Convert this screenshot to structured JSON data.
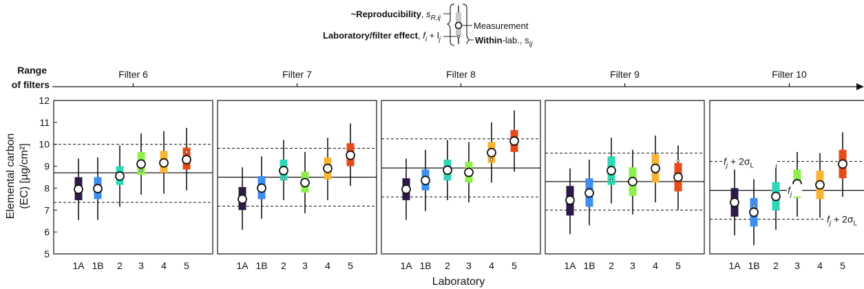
{
  "legend": {
    "reproducibility_label": "~Reproducibility",
    "reproducibility_symbol": "s",
    "reproducibility_sub": "R,ij",
    "lab_effect_label": "Laboratory/filter effect",
    "lab_effect_formula": "f",
    "lab_effect_formula_sub1": "i",
    "lab_effect_plus": " + l",
    "lab_effect_formula_sub2": "j",
    "measurement_label": "Measurement",
    "within_lab_bold": "Within",
    "within_lab_rest": "-lab., s",
    "within_lab_sub": "ij"
  },
  "top_axis": {
    "label_line1": "Range",
    "label_line2": "of filters",
    "filters": [
      "Filter 6",
      "Filter 7",
      "Filter 8",
      "Filter 9",
      "Filter 10"
    ]
  },
  "y_axis": {
    "label_line1": "Elemental carbon",
    "label_line2": "(EC) [µg/cm²]",
    "min": 5,
    "max": 12,
    "ticks": [
      5,
      6,
      7,
      8,
      9,
      10,
      11,
      12
    ]
  },
  "x_axis": {
    "label": "Laboratory",
    "categories": [
      "1A",
      "1B",
      "2",
      "3",
      "4",
      "5"
    ]
  },
  "annotations": {
    "upper": "f",
    "upper_sub": "j",
    "upper_rest": " + 2σ",
    "upper_rest_sub": "L",
    "mid": "f",
    "mid_sub": "j",
    "lower": "f",
    "lower_sub": "j",
    "lower_rest": " + 2σ",
    "lower_rest_sub": "L"
  },
  "colors": {
    "1A": "#2d1a47",
    "1B": "#3d8ef0",
    "2": "#2ed8b6",
    "3": "#8ef04a",
    "4": "#f8b434",
    "5": "#e84a18"
  },
  "chart_data": {
    "type": "box-intervals",
    "panels": [
      {
        "filter": "Filter 6",
        "mean": 8.7,
        "upper": 10.0,
        "lower": 7.35,
        "labs": [
          {
            "lab": "1A",
            "measurement": 7.95,
            "box": [
              7.45,
              8.5
            ],
            "whisker": [
              6.55,
              9.35
            ],
            "lab_effect": 7.95
          },
          {
            "lab": "1B",
            "measurement": 7.98,
            "box": [
              7.5,
              8.5
            ],
            "whisker": [
              6.55,
              9.4
            ],
            "lab_effect": 7.98
          },
          {
            "lab": "2",
            "measurement": 8.55,
            "box": [
              8.15,
              9.0
            ],
            "whisker": [
              7.15,
              9.95
            ],
            "lab_effect": 8.6
          },
          {
            "lab": "3",
            "measurement": 9.1,
            "box": [
              8.6,
              9.65
            ],
            "whisker": [
              7.7,
              10.5
            ],
            "lab_effect": 8.8
          },
          {
            "lab": "4",
            "measurement": 9.15,
            "box": [
              8.7,
              9.7
            ],
            "whisker": [
              7.75,
              10.6
            ],
            "lab_effect": 9.1
          },
          {
            "lab": "5",
            "measurement": 9.3,
            "box": [
              8.85,
              9.85
            ],
            "whisker": [
              7.9,
              10.75
            ],
            "lab_effect": 9.65
          }
        ]
      },
      {
        "filter": "Filter 7",
        "mean": 8.5,
        "upper": 9.82,
        "lower": 7.18,
        "labs": [
          {
            "lab": "1A",
            "measurement": 7.5,
            "box": [
              7.0,
              8.05
            ],
            "whisker": [
              6.1,
              8.95
            ],
            "lab_effect": 7.5
          },
          {
            "lab": "1B",
            "measurement": 8.0,
            "box": [
              7.5,
              8.55
            ],
            "whisker": [
              6.6,
              9.45
            ],
            "lab_effect": 8.0
          },
          {
            "lab": "2",
            "measurement": 8.8,
            "box": [
              8.35,
              9.3
            ],
            "whisker": [
              7.45,
              10.2
            ],
            "lab_effect": 8.45
          },
          {
            "lab": "3",
            "measurement": 8.25,
            "box": [
              7.8,
              8.75
            ],
            "whisker": [
              6.85,
              9.65
            ],
            "lab_effect": 8.25
          },
          {
            "lab": "4",
            "measurement": 8.9,
            "box": [
              8.4,
              9.4
            ],
            "whisker": [
              7.45,
              10.3
            ],
            "lab_effect": 8.9
          },
          {
            "lab": "5",
            "measurement": 9.5,
            "box": [
              9.0,
              10.05
            ],
            "whisker": [
              8.1,
              10.95
            ],
            "lab_effect": 9.5
          }
        ]
      },
      {
        "filter": "Filter 8",
        "mean": 8.92,
        "upper": 10.25,
        "lower": 7.6,
        "labs": [
          {
            "lab": "1A",
            "measurement": 7.95,
            "box": [
              7.45,
              8.45
            ],
            "whisker": [
              6.55,
              9.35
            ],
            "lab_effect": 7.95
          },
          {
            "lab": "1B",
            "measurement": 8.35,
            "box": [
              7.9,
              8.85
            ],
            "whisker": [
              6.95,
              9.75
            ],
            "lab_effect": 8.35
          },
          {
            "lab": "2",
            "measurement": 8.82,
            "box": [
              8.35,
              9.3
            ],
            "whisker": [
              7.45,
              10.2
            ],
            "lab_effect": 8.82
          },
          {
            "lab": "3",
            "measurement": 8.72,
            "box": [
              8.25,
              9.2
            ],
            "whisker": [
              7.35,
              10.1
            ],
            "lab_effect": 8.72
          },
          {
            "lab": "4",
            "measurement": 9.62,
            "box": [
              9.15,
              10.1
            ],
            "whisker": [
              8.25,
              11.0
            ],
            "lab_effect": 9.3
          },
          {
            "lab": "5",
            "measurement": 10.15,
            "box": [
              9.65,
              10.65
            ],
            "whisker": [
              8.75,
              11.55
            ],
            "lab_effect": 10.15
          }
        ]
      },
      {
        "filter": "Filter 9",
        "mean": 8.3,
        "upper": 9.6,
        "lower": 7.0,
        "labs": [
          {
            "lab": "1A",
            "measurement": 7.45,
            "box": [
              6.75,
              8.1
            ],
            "whisker": [
              5.9,
              8.9
            ],
            "lab_effect": 7.45
          },
          {
            "lab": "1B",
            "measurement": 7.78,
            "box": [
              7.15,
              8.45
            ],
            "whisker": [
              6.3,
              9.3
            ],
            "lab_effect": 7.75
          },
          {
            "lab": "2",
            "measurement": 8.8,
            "box": [
              8.15,
              9.45
            ],
            "whisker": [
              7.3,
              10.3
            ],
            "lab_effect": 8.35
          },
          {
            "lab": "3",
            "measurement": 8.3,
            "box": [
              7.65,
              8.95
            ],
            "whisker": [
              6.8,
              9.75
            ],
            "lab_effect": 8.3
          },
          {
            "lab": "4",
            "measurement": 8.9,
            "box": [
              8.25,
              9.55
            ],
            "whisker": [
              7.35,
              10.4
            ],
            "lab_effect": 8.7
          },
          {
            "lab": "5",
            "measurement": 8.5,
            "box": [
              7.85,
              9.15
            ],
            "whisker": [
              7.0,
              9.95
            ],
            "lab_effect": 9.25
          }
        ]
      },
      {
        "filter": "Filter 10",
        "mean": 7.9,
        "upper": 9.22,
        "lower": 6.58,
        "labs": [
          {
            "lab": "1A",
            "measurement": 7.35,
            "box": [
              6.7,
              8.0
            ],
            "whisker": [
              5.85,
              8.85
            ],
            "lab_effect": 7.35
          },
          {
            "lab": "1B",
            "measurement": 6.9,
            "box": [
              6.25,
              7.55
            ],
            "whisker": [
              5.4,
              8.4
            ],
            "lab_effect": 7.2
          },
          {
            "lab": "2",
            "measurement": 7.62,
            "box": [
              6.98,
              8.28
            ],
            "whisker": [
              6.1,
              9.1
            ],
            "lab_effect": 7.62
          },
          {
            "lab": "3",
            "measurement": 8.2,
            "box": [
              7.55,
              8.85
            ],
            "whisker": [
              6.7,
              9.65
            ],
            "lab_effect": 7.8
          },
          {
            "lab": "4",
            "measurement": 8.15,
            "box": [
              7.5,
              8.8
            ],
            "whisker": [
              6.65,
              9.6
            ],
            "lab_effect": 8.15
          },
          {
            "lab": "5",
            "measurement": 9.1,
            "box": [
              8.45,
              9.75
            ],
            "whisker": [
              7.6,
              10.55
            ],
            "lab_effect": 9.1
          }
        ]
      }
    ]
  }
}
